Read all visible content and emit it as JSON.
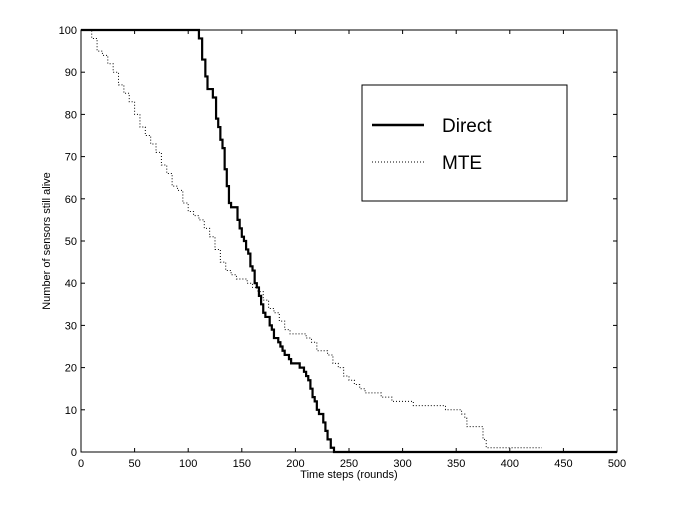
{
  "chart_data": {
    "type": "line",
    "title": "",
    "xlabel": "Time steps (rounds)",
    "ylabel": "Number of sensors still alive",
    "xlim": [
      0,
      500
    ],
    "ylim": [
      0,
      100
    ],
    "xticks": [
      0,
      50,
      100,
      150,
      200,
      250,
      300,
      350,
      400,
      450,
      500
    ],
    "yticks": [
      0,
      10,
      20,
      30,
      40,
      50,
      60,
      70,
      80,
      90,
      100
    ],
    "grid": false,
    "legend_position": "upper-right",
    "series": [
      {
        "name": "Direct",
        "style": "solid",
        "color": "#000000",
        "x": [
          0,
          107,
          110,
          113,
          116,
          118,
          120,
          123,
          126,
          128,
          130,
          132,
          134,
          136,
          138,
          140,
          143,
          146,
          148,
          150,
          152,
          154,
          156,
          158,
          160,
          162,
          164,
          166,
          168,
          170,
          172,
          174,
          176,
          178,
          180,
          182,
          184,
          186,
          188,
          190,
          192,
          194,
          196,
          198,
          200,
          202,
          204,
          206,
          208,
          210,
          212,
          214,
          216,
          218,
          220,
          222,
          224,
          226,
          228,
          230,
          233,
          236,
          500
        ],
        "y": [
          100,
          100,
          98,
          93,
          89,
          86,
          86,
          84,
          79,
          77,
          74,
          72,
          67,
          63,
          59,
          58,
          58,
          55,
          53,
          51,
          50,
          48,
          47,
          44,
          43,
          40,
          39,
          37,
          35,
          33,
          32,
          32,
          30,
          29,
          27,
          27,
          26,
          25,
          24,
          23,
          23,
          22,
          21,
          21,
          21,
          21,
          20,
          20,
          19,
          18,
          17,
          15,
          13,
          12,
          10,
          9,
          9,
          7,
          5,
          3,
          1,
          0,
          0
        ]
      },
      {
        "name": "MTE",
        "style": "dotted",
        "color": "#000000",
        "x": [
          5,
          10,
          15,
          20,
          25,
          30,
          35,
          40,
          45,
          50,
          55,
          60,
          65,
          70,
          75,
          80,
          85,
          90,
          95,
          100,
          105,
          110,
          115,
          120,
          125,
          130,
          135,
          140,
          145,
          150,
          155,
          160,
          165,
          170,
          175,
          180,
          185,
          190,
          195,
          200,
          205,
          210,
          215,
          220,
          225,
          230,
          235,
          240,
          245,
          250,
          255,
          260,
          265,
          270,
          280,
          290,
          300,
          310,
          320,
          330,
          340,
          345,
          350,
          355,
          358,
          360,
          365,
          370,
          375,
          378,
          380,
          390,
          400,
          410,
          420,
          430
        ],
        "y": [
          100,
          98,
          95,
          94,
          92,
          90,
          87,
          85,
          83,
          80,
          77,
          75,
          73,
          71,
          68,
          66,
          63,
          62,
          59,
          57,
          56,
          55,
          53,
          51,
          48,
          45,
          43,
          42,
          41,
          41,
          40,
          39,
          38,
          36,
          34,
          33,
          31,
          29,
          28,
          28,
          28,
          27,
          26,
          24,
          24,
          23,
          21,
          20,
          18,
          17,
          16,
          15,
          14,
          14,
          13,
          12,
          12,
          11,
          11,
          11,
          10,
          10,
          10,
          9,
          8,
          6,
          6,
          6,
          3,
          1,
          1,
          1,
          1,
          1,
          1,
          1
        ]
      }
    ]
  }
}
